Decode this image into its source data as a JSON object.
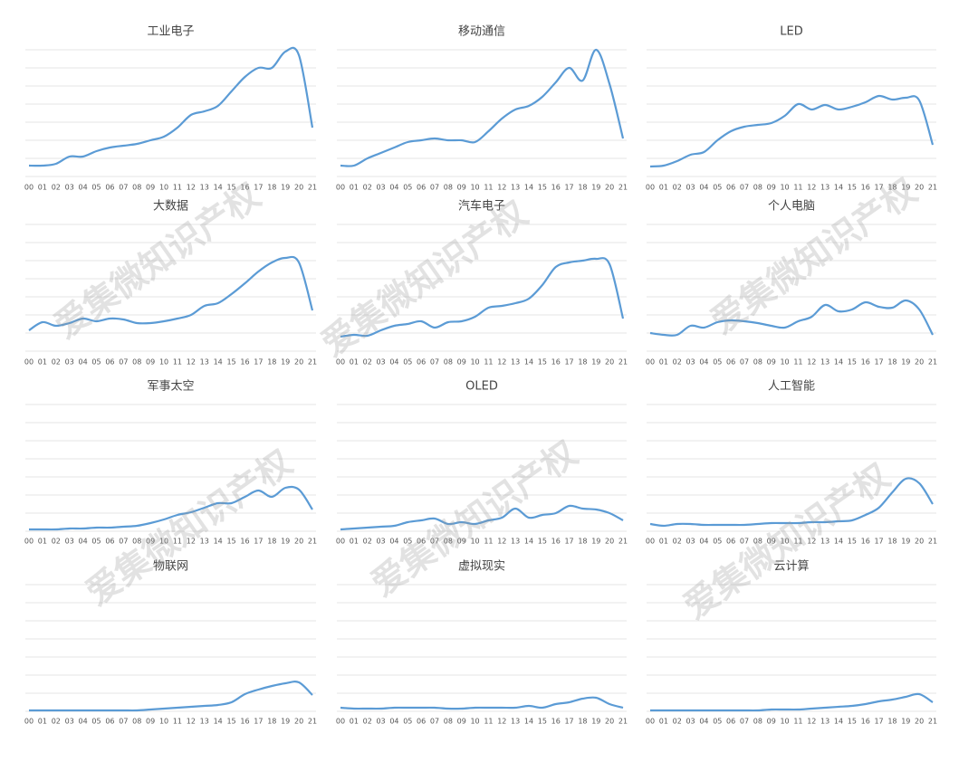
{
  "watermark": "爱集微知识产权",
  "chart_data": [
    {
      "type": "line",
      "title": "工业电子",
      "color": "#5b9bd5",
      "grid": true,
      "ylim": [
        0,
        7
      ],
      "yticks": [
        0,
        1,
        2,
        3,
        4,
        5,
        6,
        7
      ],
      "categories": [
        "00",
        "01",
        "02",
        "03",
        "04",
        "05",
        "06",
        "07",
        "08",
        "09",
        "10",
        "11",
        "12",
        "13",
        "14",
        "15",
        "16",
        "17",
        "18",
        "19",
        "20",
        "21"
      ],
      "values": [
        0.6,
        0.6,
        0.7,
        1.1,
        1.1,
        1.4,
        1.6,
        1.7,
        1.8,
        2.0,
        2.2,
        2.7,
        3.4,
        3.6,
        3.9,
        4.7,
        5.5,
        6.0,
        6.0,
        6.9,
        6.7,
        2.7
      ]
    },
    {
      "type": "line",
      "title": "移动通信",
      "color": "#5b9bd5",
      "grid": true,
      "ylim": [
        0,
        7
      ],
      "yticks": [
        0,
        1,
        2,
        3,
        4,
        5,
        6,
        7
      ],
      "categories": [
        "00",
        "01",
        "02",
        "03",
        "04",
        "05",
        "06",
        "07",
        "08",
        "09",
        "10",
        "11",
        "12",
        "13",
        "14",
        "15",
        "16",
        "17",
        "18",
        "19",
        "20",
        "21"
      ],
      "values": [
        0.6,
        0.6,
        1.0,
        1.3,
        1.6,
        1.9,
        2.0,
        2.1,
        2.0,
        2.0,
        1.9,
        2.5,
        3.2,
        3.7,
        3.9,
        4.4,
        5.2,
        6.0,
        5.3,
        7.0,
        5.1,
        2.1
      ]
    },
    {
      "type": "line",
      "title": "LED",
      "color": "#5b9bd5",
      "grid": true,
      "ylim": [
        0,
        7
      ],
      "yticks": [
        0,
        1,
        2,
        3,
        4,
        5,
        6,
        7
      ],
      "categories": [
        "00",
        "01",
        "02",
        "03",
        "04",
        "05",
        "06",
        "07",
        "08",
        "09",
        "10",
        "11",
        "12",
        "13",
        "14",
        "15",
        "16",
        "17",
        "18",
        "19",
        "20",
        "21"
      ],
      "values": [
        0.55,
        0.6,
        0.85,
        1.2,
        1.35,
        2.0,
        2.5,
        2.75,
        2.85,
        2.95,
        3.35,
        4.0,
        3.7,
        3.95,
        3.7,
        3.85,
        4.1,
        4.45,
        4.25,
        4.35,
        4.2,
        1.75
      ]
    },
    {
      "type": "line",
      "title": "大数据",
      "color": "#5b9bd5",
      "grid": true,
      "ylim": [
        0,
        7
      ],
      "yticks": [
        0,
        1,
        2,
        3,
        4,
        5,
        6,
        7
      ],
      "categories": [
        "00",
        "01",
        "02",
        "03",
        "04",
        "05",
        "06",
        "07",
        "08",
        "09",
        "10",
        "11",
        "12",
        "13",
        "14",
        "15",
        "16",
        "17",
        "18",
        "19",
        "20",
        "21"
      ],
      "values": [
        1.15,
        1.6,
        1.4,
        1.55,
        1.8,
        1.65,
        1.8,
        1.75,
        1.55,
        1.55,
        1.65,
        1.8,
        2.0,
        2.5,
        2.65,
        3.15,
        3.75,
        4.4,
        4.9,
        5.15,
        4.9,
        2.25
      ]
    },
    {
      "type": "line",
      "title": "汽车电子",
      "color": "#5b9bd5",
      "grid": true,
      "ylim": [
        0,
        7
      ],
      "yticks": [
        0,
        1,
        2,
        3,
        4,
        5,
        6,
        7
      ],
      "categories": [
        "00",
        "01",
        "02",
        "03",
        "04",
        "05",
        "06",
        "07",
        "08",
        "09",
        "10",
        "11",
        "12",
        "13",
        "14",
        "15",
        "16",
        "17",
        "18",
        "19",
        "20",
        "21"
      ],
      "values": [
        0.8,
        0.9,
        0.85,
        1.15,
        1.4,
        1.5,
        1.65,
        1.3,
        1.6,
        1.65,
        1.9,
        2.4,
        2.5,
        2.65,
        2.9,
        3.65,
        4.65,
        4.9,
        5.0,
        5.1,
        4.8,
        1.8
      ]
    },
    {
      "type": "line",
      "title": "个人电脑",
      "color": "#5b9bd5",
      "grid": true,
      "ylim": [
        0,
        7
      ],
      "yticks": [
        0,
        1,
        2,
        3,
        4,
        5,
        6,
        7
      ],
      "categories": [
        "00",
        "01",
        "02",
        "03",
        "04",
        "05",
        "06",
        "07",
        "08",
        "09",
        "10",
        "11",
        "12",
        "13",
        "14",
        "15",
        "16",
        "17",
        "18",
        "19",
        "20",
        "21"
      ],
      "values": [
        1.0,
        0.9,
        0.9,
        1.4,
        1.3,
        1.6,
        1.7,
        1.65,
        1.55,
        1.4,
        1.3,
        1.65,
        1.9,
        2.55,
        2.2,
        2.3,
        2.7,
        2.45,
        2.4,
        2.8,
        2.3,
        0.9
      ]
    },
    {
      "type": "line",
      "title": "军事太空",
      "color": "#5b9bd5",
      "grid": true,
      "ylim": [
        0,
        7
      ],
      "yticks": [
        0,
        1,
        2,
        3,
        4,
        5,
        6,
        7
      ],
      "categories": [
        "00",
        "01",
        "02",
        "03",
        "04",
        "05",
        "06",
        "07",
        "08",
        "09",
        "10",
        "11",
        "12",
        "13",
        "14",
        "15",
        "16",
        "17",
        "18",
        "19",
        "20",
        "21"
      ],
      "values": [
        0.1,
        0.1,
        0.1,
        0.15,
        0.15,
        0.2,
        0.2,
        0.25,
        0.3,
        0.45,
        0.65,
        0.9,
        1.05,
        1.3,
        1.55,
        1.55,
        1.9,
        2.25,
        1.9,
        2.4,
        2.3,
        1.2
      ]
    },
    {
      "type": "line",
      "title": "OLED",
      "color": "#5b9bd5",
      "grid": true,
      "ylim": [
        0,
        7
      ],
      "yticks": [
        0,
        1,
        2,
        3,
        4,
        5,
        6,
        7
      ],
      "categories": [
        "00",
        "01",
        "02",
        "03",
        "04",
        "05",
        "06",
        "07",
        "08",
        "09",
        "10",
        "11",
        "12",
        "13",
        "14",
        "15",
        "16",
        "17",
        "18",
        "19",
        "20",
        "21"
      ],
      "values": [
        0.1,
        0.15,
        0.2,
        0.25,
        0.3,
        0.5,
        0.6,
        0.7,
        0.4,
        0.5,
        0.4,
        0.6,
        0.75,
        1.25,
        0.75,
        0.9,
        1.0,
        1.4,
        1.25,
        1.2,
        1.0,
        0.6
      ]
    },
    {
      "type": "line",
      "title": "人工智能",
      "color": "#5b9bd5",
      "grid": true,
      "ylim": [
        0,
        7
      ],
      "yticks": [
        0,
        1,
        2,
        3,
        4,
        5,
        6,
        7
      ],
      "categories": [
        "00",
        "01",
        "02",
        "03",
        "04",
        "05",
        "06",
        "07",
        "08",
        "09",
        "10",
        "11",
        "12",
        "13",
        "14",
        "15",
        "16",
        "17",
        "18",
        "19",
        "20",
        "21"
      ],
      "values": [
        0.4,
        0.3,
        0.4,
        0.4,
        0.35,
        0.35,
        0.35,
        0.35,
        0.4,
        0.45,
        0.45,
        0.45,
        0.5,
        0.5,
        0.55,
        0.6,
        0.9,
        1.3,
        2.15,
        2.9,
        2.65,
        1.5
      ]
    },
    {
      "type": "line",
      "title": "物联网",
      "color": "#5b9bd5",
      "grid": true,
      "ylim": [
        0,
        7
      ],
      "yticks": [
        0,
        1,
        2,
        3,
        4,
        5,
        6,
        7
      ],
      "categories": [
        "00",
        "01",
        "02",
        "03",
        "04",
        "05",
        "06",
        "07",
        "08",
        "09",
        "10",
        "11",
        "12",
        "13",
        "14",
        "15",
        "16",
        "17",
        "18",
        "19",
        "20",
        "21"
      ],
      "values": [
        0.05,
        0.05,
        0.05,
        0.05,
        0.05,
        0.05,
        0.05,
        0.05,
        0.05,
        0.1,
        0.15,
        0.2,
        0.25,
        0.3,
        0.35,
        0.5,
        0.95,
        1.2,
        1.4,
        1.55,
        1.6,
        0.9
      ]
    },
    {
      "type": "line",
      "title": "虚拟现实",
      "color": "#5b9bd5",
      "grid": true,
      "ylim": [
        0,
        7
      ],
      "yticks": [
        0,
        1,
        2,
        3,
        4,
        5,
        6,
        7
      ],
      "categories": [
        "00",
        "01",
        "02",
        "03",
        "04",
        "05",
        "06",
        "07",
        "08",
        "09",
        "10",
        "11",
        "12",
        "13",
        "14",
        "15",
        "16",
        "17",
        "18",
        "19",
        "20",
        "21"
      ],
      "values": [
        0.2,
        0.15,
        0.15,
        0.15,
        0.2,
        0.2,
        0.2,
        0.2,
        0.15,
        0.15,
        0.2,
        0.2,
        0.2,
        0.2,
        0.3,
        0.2,
        0.4,
        0.5,
        0.7,
        0.75,
        0.4,
        0.2
      ]
    },
    {
      "type": "line",
      "title": "云计算",
      "color": "#5b9bd5",
      "grid": true,
      "ylim": [
        0,
        7
      ],
      "yticks": [
        0,
        1,
        2,
        3,
        4,
        5,
        6,
        7
      ],
      "categories": [
        "00",
        "01",
        "02",
        "03",
        "04",
        "05",
        "06",
        "07",
        "08",
        "09",
        "10",
        "11",
        "12",
        "13",
        "14",
        "15",
        "16",
        "17",
        "18",
        "19",
        "20",
        "21"
      ],
      "values": [
        0.05,
        0.05,
        0.05,
        0.05,
        0.05,
        0.05,
        0.05,
        0.05,
        0.05,
        0.1,
        0.1,
        0.1,
        0.15,
        0.2,
        0.25,
        0.3,
        0.4,
        0.55,
        0.65,
        0.8,
        0.95,
        0.5
      ]
    }
  ]
}
